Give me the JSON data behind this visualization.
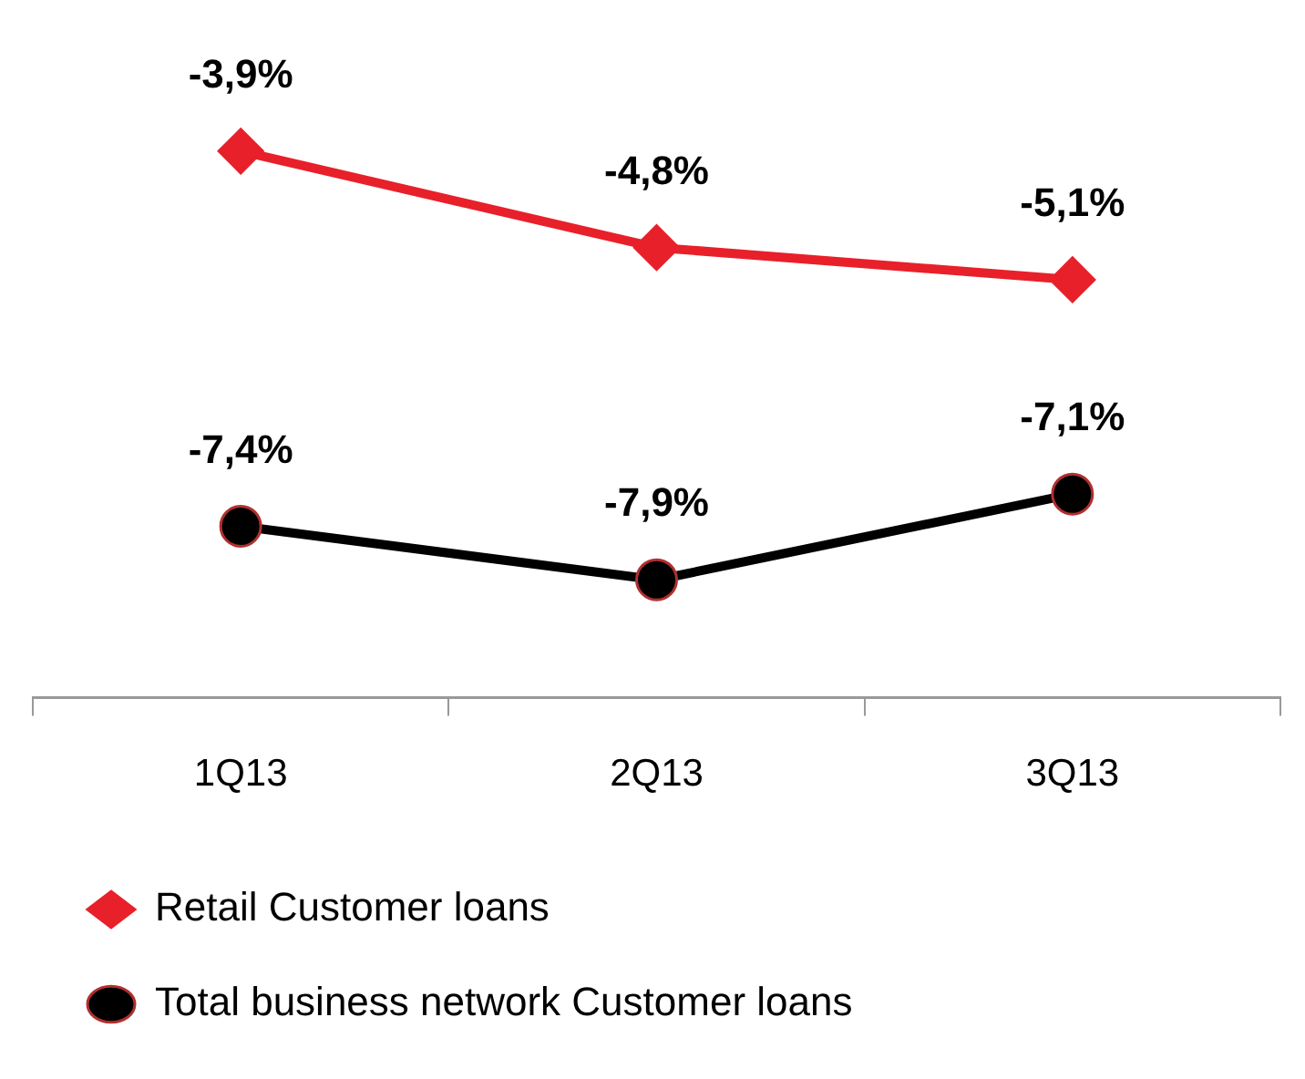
{
  "chart_data": {
    "type": "line",
    "categories": [
      "1Q13",
      "2Q13",
      "3Q13"
    ],
    "tick_labels": "x",
    "legend": "bottom",
    "grid": false,
    "series": [
      {
        "name": "Retail Customer loans",
        "color": "#e8202a",
        "marker": "diamond",
        "values": [
          -3.9,
          -4.8,
          -5.1
        ],
        "value_labels": [
          "-3,9%",
          "-4,8%",
          "-5,1%"
        ]
      },
      {
        "name": "Total business network Customer loans",
        "color": "#000000",
        "marker": "circle",
        "values": [
          -7.4,
          -7.9,
          -7.1
        ],
        "value_labels": [
          "-7,4%",
          "-7,9%",
          "-7,1%"
        ]
      }
    ]
  }
}
